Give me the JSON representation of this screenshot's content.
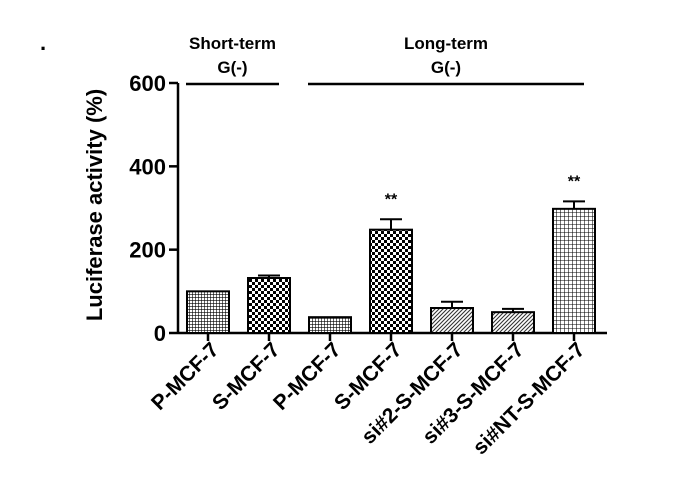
{
  "chart_data": {
    "type": "bar",
    "title": "",
    "xlabel": "",
    "ylabel": "Luciferase activity (%)",
    "ylim": [
      0,
      600
    ],
    "yticks": [
      0,
      200,
      400,
      600
    ],
    "categories": [
      "P-MCF-7",
      "S-MCF-7",
      "P-MCF-7",
      "S-MCF-7",
      "si#2-S-MCF-7",
      "si#3-S-MCF-7",
      "si#NT-S-MCF-7"
    ],
    "values": [
      100,
      132,
      38,
      248,
      60,
      50,
      298
    ],
    "errors": [
      0,
      6,
      0,
      25,
      15,
      8,
      18
    ],
    "patterns": [
      "grid-fine",
      "check",
      "grid-fine",
      "check",
      "diag",
      "diag",
      "grid-lines"
    ],
    "significance": [
      "",
      "",
      "",
      "**",
      "",
      "",
      "**"
    ],
    "groups": [
      {
        "line1": "Short-term",
        "line2": "G(-)",
        "start_index": 0,
        "end_index": 1
      },
      {
        "line1": "Long-term",
        "line2": "G(-)",
        "start_index": 2,
        "end_index": 6
      }
    ]
  },
  "corner_mark": "."
}
